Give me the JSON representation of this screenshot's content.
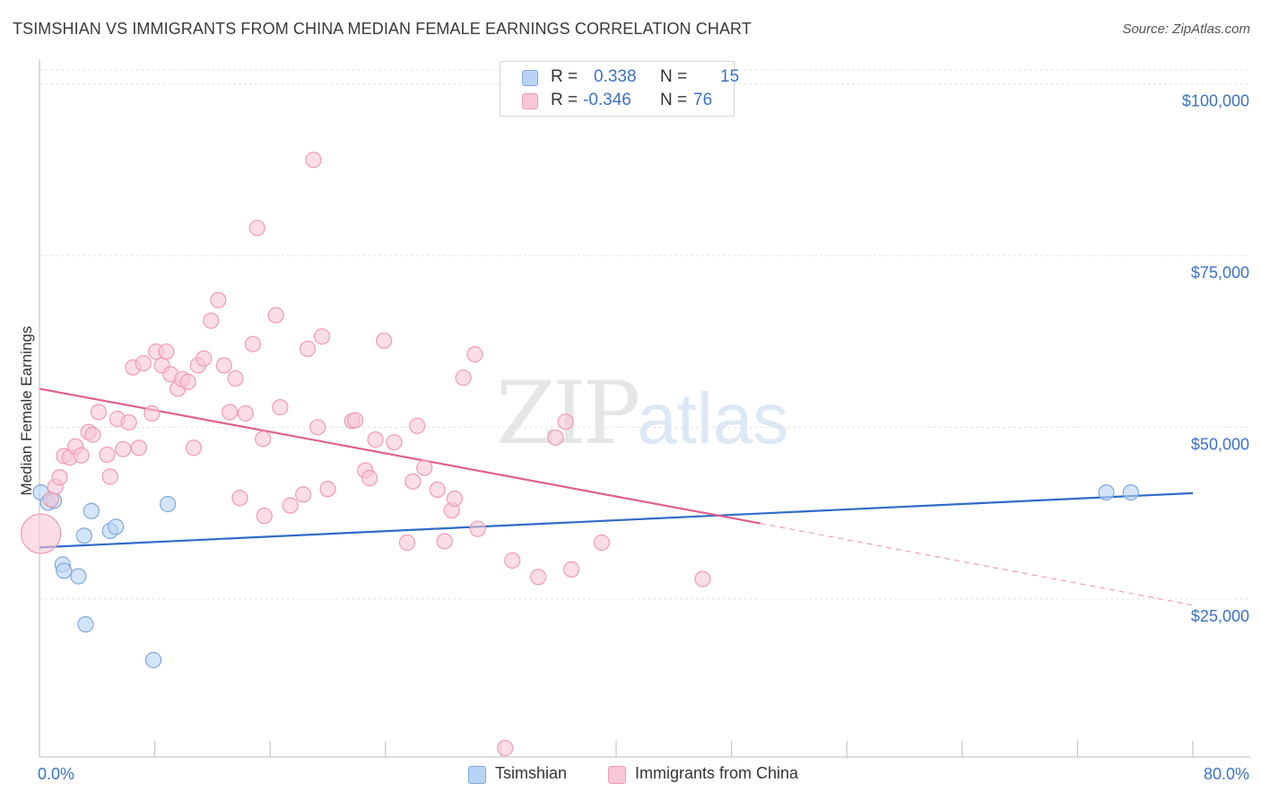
{
  "header": {
    "title": "TSIMSHIAN VS IMMIGRANTS FROM CHINA MEDIAN FEMALE EARNINGS CORRELATION CHART",
    "source": "Source: ZipAtlas.com"
  },
  "watermark": {
    "zip": "ZIP",
    "atlas": "atlas"
  },
  "legend_top": {
    "rows": [
      {
        "r_label": "R =",
        "r_value": "0.338",
        "n_label": "N =",
        "n_value": "15"
      },
      {
        "r_label": "R =",
        "r_value": "-0.346",
        "n_label": "N =",
        "n_value": "76"
      }
    ]
  },
  "legend_bottom": {
    "items": [
      "Tsimshian",
      "Immigrants from China"
    ]
  },
  "colors": {
    "blue_fill": "#b9d3f5",
    "blue_stroke": "#7fa8dd",
    "blue_line": "#2f6cc8",
    "pink_fill": "#f9c6d5",
    "pink_stroke": "#ee9bb5",
    "pink_line": "#e0608e",
    "axis_text": "#3b73c4"
  },
  "chart_data": {
    "type": "scatter",
    "title": "TSIMSHIAN VS IMMIGRANTS FROM CHINA MEDIAN FEMALE EARNINGS CORRELATION CHART",
    "xlabel": "",
    "ylabel": "Median Female Earnings",
    "xlim": [
      0,
      80
    ],
    "ylim": [
      2000,
      102000
    ],
    "x_tick_labels": [
      "0.0%",
      "80.0%"
    ],
    "y_ticks": [
      {
        "value": 25000,
        "label": "$25,000"
      },
      {
        "value": 50000,
        "label": "$50,000"
      },
      {
        "value": 75000,
        "label": "$75,000"
      },
      {
        "value": 100000,
        "label": "$100,000"
      }
    ],
    "grid": true,
    "series": [
      {
        "name": "Tsimshian",
        "R": 0.338,
        "N": 15,
        "points": [
          [
            0.1,
            40500
          ],
          [
            0.6,
            39000
          ],
          [
            1.0,
            39300
          ],
          [
            1.6,
            30000
          ],
          [
            1.7,
            29100
          ],
          [
            2.7,
            28300
          ],
          [
            3.1,
            34200
          ],
          [
            3.2,
            21300
          ],
          [
            3.6,
            37800
          ],
          [
            4.9,
            34900
          ],
          [
            5.3,
            35500
          ],
          [
            7.9,
            16100
          ],
          [
            8.9,
            38800
          ],
          [
            74.0,
            40500
          ],
          [
            75.7,
            40500
          ]
        ],
        "trend": {
          "x": [
            0,
            80
          ],
          "y": [
            32500,
            40400
          ],
          "style": "solid"
        }
      },
      {
        "name": "Immigrants from China",
        "R": -0.346,
        "N": 76,
        "points": [
          [
            0.1,
            34500
          ],
          [
            0.8,
            39500
          ],
          [
            1.1,
            41300
          ],
          [
            1.4,
            42700
          ],
          [
            1.7,
            45800
          ],
          [
            2.1,
            45600
          ],
          [
            2.5,
            47200
          ],
          [
            2.9,
            45900
          ],
          [
            3.4,
            49300
          ],
          [
            3.7,
            48900
          ],
          [
            4.1,
            52200
          ],
          [
            4.7,
            46000
          ],
          [
            4.9,
            42800
          ],
          [
            5.4,
            51200
          ],
          [
            5.8,
            46800
          ],
          [
            6.2,
            50700
          ],
          [
            6.9,
            47000
          ],
          [
            6.5,
            58700
          ],
          [
            7.2,
            59300
          ],
          [
            7.8,
            52000
          ],
          [
            8.1,
            61000
          ],
          [
            8.5,
            59000
          ],
          [
            8.8,
            61000
          ],
          [
            9.1,
            57700
          ],
          [
            9.6,
            55600
          ],
          [
            9.9,
            57000
          ],
          [
            10.3,
            56600
          ],
          [
            10.7,
            47000
          ],
          [
            11.0,
            59000
          ],
          [
            11.4,
            60000
          ],
          [
            11.9,
            65500
          ],
          [
            12.4,
            68500
          ],
          [
            12.8,
            59000
          ],
          [
            13.2,
            52200
          ],
          [
            13.6,
            57100
          ],
          [
            13.9,
            39700
          ],
          [
            14.3,
            52000
          ],
          [
            14.8,
            62100
          ],
          [
            15.1,
            79000
          ],
          [
            15.5,
            48300
          ],
          [
            15.6,
            37100
          ],
          [
            16.4,
            66300
          ],
          [
            16.7,
            52900
          ],
          [
            17.4,
            38600
          ],
          [
            18.3,
            40200
          ],
          [
            18.6,
            61400
          ],
          [
            19.0,
            88900
          ],
          [
            19.3,
            50000
          ],
          [
            19.6,
            63200
          ],
          [
            20.0,
            41000
          ],
          [
            21.7,
            50900
          ],
          [
            21.9,
            51000
          ],
          [
            22.6,
            43700
          ],
          [
            22.9,
            42600
          ],
          [
            23.3,
            48200
          ],
          [
            23.9,
            62600
          ],
          [
            24.6,
            47800
          ],
          [
            25.5,
            33200
          ],
          [
            25.9,
            42100
          ],
          [
            26.2,
            50200
          ],
          [
            26.7,
            44100
          ],
          [
            27.6,
            40900
          ],
          [
            28.1,
            33400
          ],
          [
            28.6,
            37900
          ],
          [
            28.8,
            39600
          ],
          [
            29.4,
            57200
          ],
          [
            30.2,
            60600
          ],
          [
            30.4,
            35200
          ],
          [
            32.3,
            3300
          ],
          [
            32.8,
            30600
          ],
          [
            34.6,
            28200
          ],
          [
            35.8,
            48500
          ],
          [
            36.5,
            50800
          ],
          [
            36.9,
            29300
          ],
          [
            39.0,
            33200
          ],
          [
            46.0,
            27900
          ]
        ],
        "trend": {
          "x": [
            0,
            50
          ],
          "y": [
            55600,
            36000
          ],
          "style": "solid"
        },
        "trend_extension": {
          "x": [
            50,
            80
          ],
          "y": [
            36000,
            24100
          ],
          "style": "dashed"
        }
      }
    ]
  }
}
